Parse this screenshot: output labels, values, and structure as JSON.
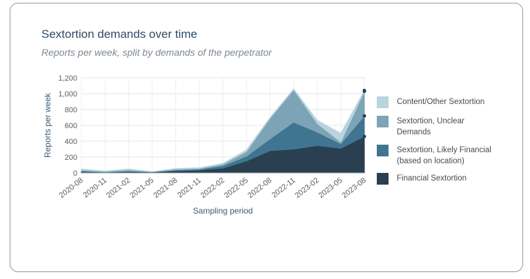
{
  "title": "Sextortion demands over time",
  "subtitle": "Reports per week, split by demands of the perpetrator",
  "chart_data": {
    "type": "area",
    "stacked": true,
    "title": "Sextortion demands over time",
    "subtitle": "Reports per week, split by demands of the perpetrator",
    "xlabel": "Sampling period",
    "ylabel": "Reports per week",
    "ylim": [
      0,
      1200
    ],
    "yticks": [
      0,
      200,
      400,
      600,
      800,
      1000,
      1200
    ],
    "grid": true,
    "legend_position": "right",
    "categories": [
      "2020-08",
      "2020-11",
      "2021-02",
      "2021-05",
      "2021-08",
      "2021-11",
      "2022-02",
      "2022-05",
      "2022-08",
      "2022-11",
      "2023-02",
      "2023-05",
      "2023-08"
    ],
    "series": [
      {
        "name": "Financial Sextortion",
        "color": "#2a3f50",
        "values": [
          15,
          8,
          15,
          10,
          25,
          35,
          60,
          150,
          280,
          300,
          345,
          310,
          460
        ]
      },
      {
        "name": "Sextortion, Likely Financial (based on location)",
        "color": "#3f7591",
        "values": [
          10,
          5,
          10,
          3,
          12,
          12,
          30,
          60,
          150,
          340,
          170,
          60,
          260
        ]
      },
      {
        "name": "Sextortion, Unclear Demands",
        "color": "#7da4b6",
        "values": [
          10,
          5,
          12,
          2,
          10,
          10,
          20,
          60,
          260,
          410,
          110,
          20,
          310
        ]
      },
      {
        "name": "Content/Other Sextortion",
        "color": "#b9d3df",
        "values": [
          15,
          5,
          13,
          0,
          8,
          8,
          10,
          20,
          10,
          10,
          40,
          110,
          10
        ]
      }
    ]
  },
  "legend": [
    {
      "label": "Content/Other Sextortion",
      "color": "#b9d3df"
    },
    {
      "label": "Sextortion, Unclear Demands",
      "color": "#7da4b6"
    },
    {
      "label": "Sextortion, Likely Financial (based on location)",
      "color": "#3f7591"
    },
    {
      "label": "Financial Sextortion",
      "color": "#2a3f50"
    }
  ]
}
